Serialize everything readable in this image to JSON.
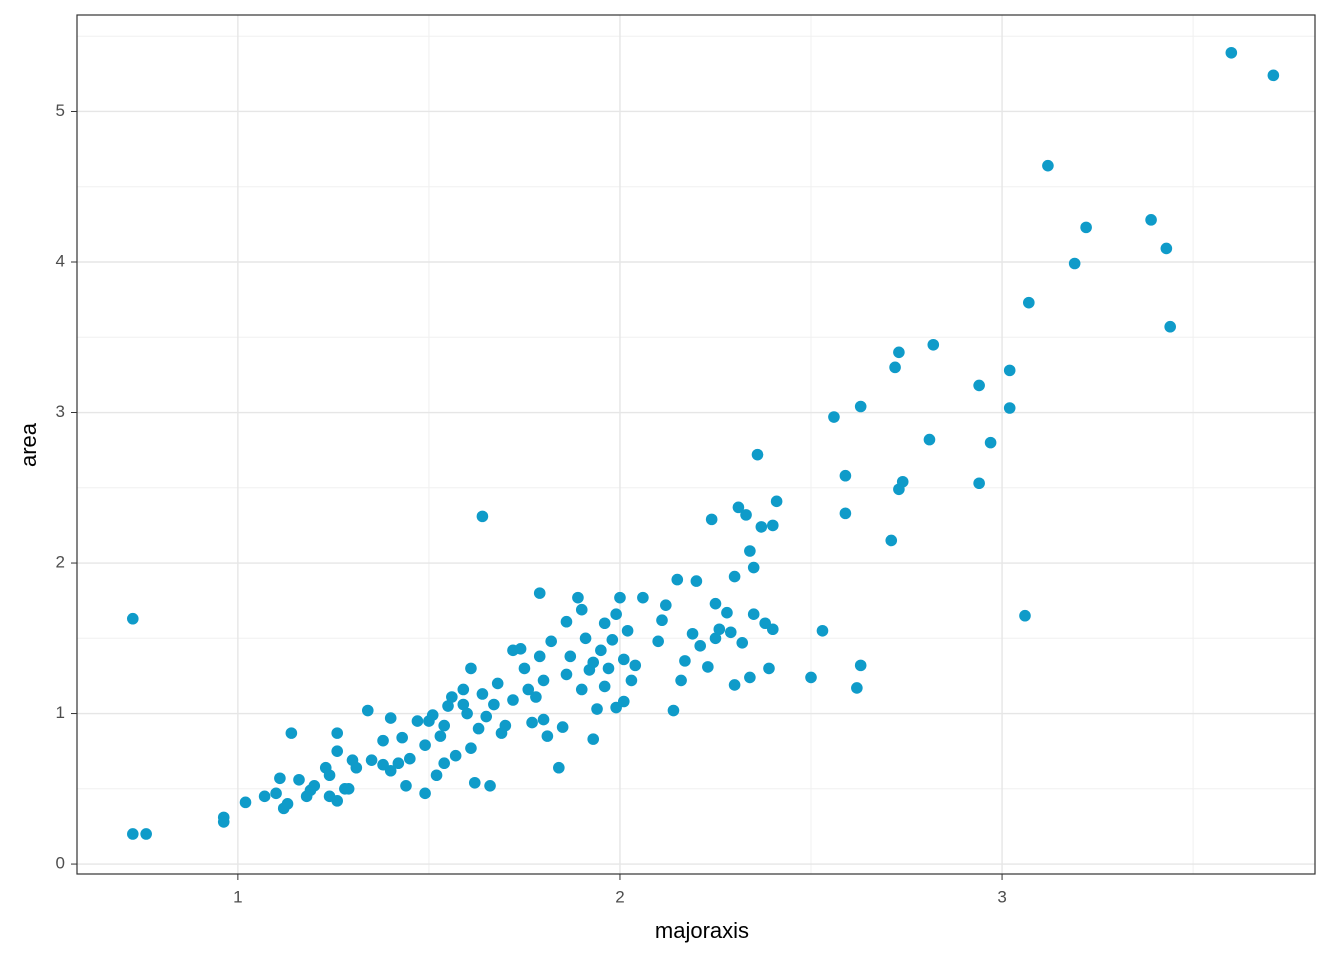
{
  "chart_data": {
    "type": "scatter",
    "x_label": "majoraxis",
    "y_label": "area",
    "color": "#0f9bc9",
    "grid": true,
    "xlim": [
      0.579,
      3.819
    ],
    "ylim": [
      -0.066,
      5.641
    ],
    "xticks": [
      1,
      2,
      3
    ],
    "yticks": [
      0,
      1,
      2,
      3,
      4,
      5
    ],
    "x": [
      0.725,
      0.725,
      0.76,
      0.963,
      0.963,
      1.02,
      1.07,
      1.1,
      1.11,
      1.12,
      1.13,
      1.14,
      1.16,
      1.18,
      1.19,
      1.2,
      1.23,
      1.24,
      1.24,
      1.26,
      1.26,
      1.26,
      1.28,
      1.29,
      1.3,
      1.31,
      1.34,
      1.35,
      1.38,
      1.38,
      1.4,
      1.4,
      1.42,
      1.43,
      1.44,
      1.45,
      1.47,
      1.49,
      1.49,
      1.5,
      1.51,
      1.52,
      1.53,
      1.54,
      1.54,
      1.55,
      1.56,
      1.57,
      1.59,
      1.59,
      1.6,
      1.61,
      1.61,
      1.62,
      1.63,
      1.64,
      1.64,
      1.65,
      1.66,
      1.67,
      1.68,
      1.69,
      1.7,
      1.72,
      1.72,
      1.74,
      1.75,
      1.76,
      1.77,
      1.78,
      1.79,
      1.79,
      1.8,
      1.8,
      1.81,
      1.82,
      1.84,
      1.85,
      1.86,
      1.86,
      1.87,
      1.89,
      1.9,
      1.9,
      1.91,
      1.92,
      1.93,
      1.93,
      1.94,
      1.95,
      1.96,
      1.96,
      1.97,
      1.98,
      1.99,
      1.99,
      2.0,
      2.01,
      2.01,
      2.02,
      2.03,
      2.04,
      2.06,
      2.1,
      2.11,
      2.12,
      2.14,
      2.15,
      2.16,
      2.17,
      2.19,
      2.2,
      2.21,
      2.23,
      2.24,
      2.25,
      2.25,
      2.26,
      2.28,
      2.29,
      2.3,
      2.3,
      2.31,
      2.32,
      2.33,
      2.34,
      2.34,
      2.35,
      2.35,
      2.36,
      2.37,
      2.38,
      2.39,
      2.4,
      2.4,
      2.41,
      2.5,
      2.53,
      2.56,
      2.59,
      2.59,
      2.62,
      2.63,
      2.63,
      2.71,
      2.72,
      2.73,
      2.73,
      2.74,
      2.81,
      2.82,
      2.94,
      2.94,
      2.97,
      3.02,
      3.02,
      3.06,
      3.07,
      3.12,
      3.19,
      3.22,
      3.39,
      3.43,
      3.44,
      3.6,
      3.71
    ],
    "values": [
      1.63,
      0.2,
      0.2,
      0.31,
      0.28,
      0.41,
      0.45,
      0.47,
      0.57,
      0.37,
      0.4,
      0.87,
      0.56,
      0.45,
      0.49,
      0.52,
      0.64,
      0.59,
      0.45,
      0.75,
      0.87,
      0.42,
      0.5,
      0.5,
      0.69,
      0.64,
      1.02,
      0.69,
      0.82,
      0.66,
      0.62,
      0.97,
      0.67,
      0.84,
      0.52,
      0.7,
      0.95,
      0.47,
      0.79,
      0.95,
      0.99,
      0.59,
      0.85,
      0.67,
      0.92,
      1.05,
      1.11,
      0.72,
      1.06,
      1.16,
      1.0,
      1.3,
      0.77,
      0.54,
      0.9,
      1.13,
      2.31,
      0.98,
      0.52,
      1.06,
      1.2,
      0.87,
      0.92,
      1.42,
      1.09,
      1.43,
      1.3,
      1.16,
      0.94,
      1.11,
      1.8,
      1.38,
      1.22,
      0.96,
      0.85,
      1.48,
      0.64,
      0.91,
      1.26,
      1.61,
      1.38,
      1.77,
      1.16,
      1.69,
      1.5,
      1.29,
      1.34,
      0.83,
      1.03,
      1.42,
      1.6,
      1.18,
      1.3,
      1.49,
      1.04,
      1.66,
      1.77,
      1.08,
      1.36,
      1.55,
      1.22,
      1.32,
      1.77,
      1.48,
      1.62,
      1.72,
      1.02,
      1.89,
      1.22,
      1.35,
      1.53,
      1.88,
      1.45,
      1.31,
      2.29,
      1.5,
      1.73,
      1.56,
      1.67,
      1.54,
      1.91,
      1.19,
      2.37,
      1.47,
      2.32,
      1.24,
      2.08,
      1.97,
      1.66,
      2.72,
      2.24,
      1.6,
      1.3,
      1.56,
      2.25,
      2.41,
      1.24,
      1.55,
      2.97,
      2.58,
      2.33,
      1.17,
      3.04,
      1.32,
      2.15,
      3.3,
      3.4,
      2.49,
      2.54,
      2.82,
      3.45,
      3.18,
      2.53,
      2.8,
      3.28,
      3.03,
      1.65,
      3.73,
      4.64,
      3.99,
      4.23,
      4.28,
      4.09,
      3.57,
      5.39,
      5.24
    ]
  }
}
